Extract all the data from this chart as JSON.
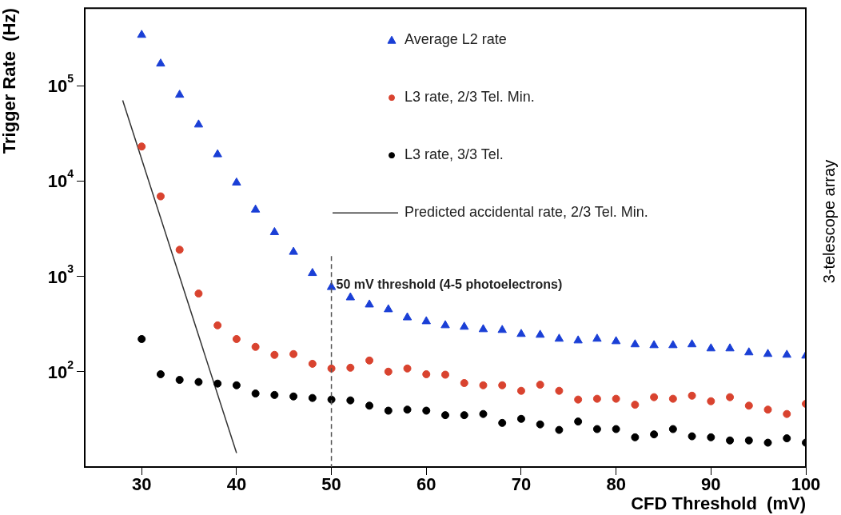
{
  "chart_data": {
    "type": "scatter",
    "xlabel": "CFD Threshold  (mV)",
    "ylabel": "Trigger Rate  (Hz)",
    "x": [
      30,
      32,
      34,
      36,
      38,
      40,
      42,
      44,
      46,
      48,
      50,
      52,
      54,
      56,
      58,
      60,
      62,
      64,
      66,
      68,
      70,
      72,
      74,
      76,
      78,
      80,
      82,
      84,
      86,
      88,
      90,
      92,
      94,
      96,
      98,
      100
    ],
    "series": [
      {
        "name": "Average L2 rate",
        "color": "#1a3fd6",
        "marker": "triangle",
        "values": [
          340000,
          170000,
          80000,
          39000,
          19000,
          9600,
          5000,
          2900,
          1800,
          1080,
          770,
          600,
          505,
          450,
          370,
          337,
          306,
          295,
          278,
          273,
          248,
          243,
          221,
          212,
          221,
          208,
          193,
          189,
          189,
          193,
          175,
          175,
          159,
          153,
          150,
          147
        ]
      },
      {
        "name": "L3 rate, 2/3 Tel. Min.",
        "color": "#d9432f",
        "marker": "circle",
        "values": [
          23000,
          6900,
          1900,
          660,
          306,
          220,
          182,
          150,
          153,
          121,
          108,
          110,
          131,
          100,
          108,
          94,
          93,
          76,
          72,
          72,
          63,
          73,
          63,
          51,
          52,
          52,
          45,
          54,
          52,
          56,
          49,
          54,
          44,
          40,
          36,
          46
        ]
      },
      {
        "name": "L3 rate, 3/3 Tel.",
        "color": "#000000",
        "marker": "circle",
        "values": [
          220,
          94,
          82,
          78,
          75,
          72,
          59,
          57,
          55,
          53,
          51,
          50,
          44,
          39,
          40,
          39,
          35,
          35,
          36,
          29,
          32,
          28,
          24.5,
          30,
          25,
          25,
          20.5,
          22,
          25,
          21,
          20.5,
          19,
          19,
          18,
          20,
          18
        ]
      },
      {
        "name": "Predicted accidental rate, 2/3 Tel. Min.",
        "type": "line",
        "color": "#333333",
        "marker": "none",
        "line_style": "solid",
        "x": [
          28,
          40
        ],
        "values": [
          70000,
          14
        ]
      }
    ],
    "xlim": [
      24,
      100
    ],
    "xticks": [
      30,
      40,
      50,
      60,
      70,
      80,
      90,
      100
    ],
    "ylim": [
      10,
      650000
    ],
    "yticks": [
      {
        "value": 100,
        "label": "10$^{2}$"
      },
      {
        "value": 1000,
        "label": "10$^{3}$"
      },
      {
        "value": 10000,
        "label": "10$^{4}$"
      },
      {
        "value": 100000,
        "label": "10$^{5}$"
      }
    ],
    "log": "y",
    "grid": false,
    "legend": "top right",
    "ref_lines": [
      {
        "axis": "x",
        "value": 50,
        "label": "50 mV threshold (4-5 photoelectrons)",
        "color": "#555555",
        "line_style": "dashed"
      }
    ],
    "annotations": [
      "3-telescope array"
    ]
  }
}
